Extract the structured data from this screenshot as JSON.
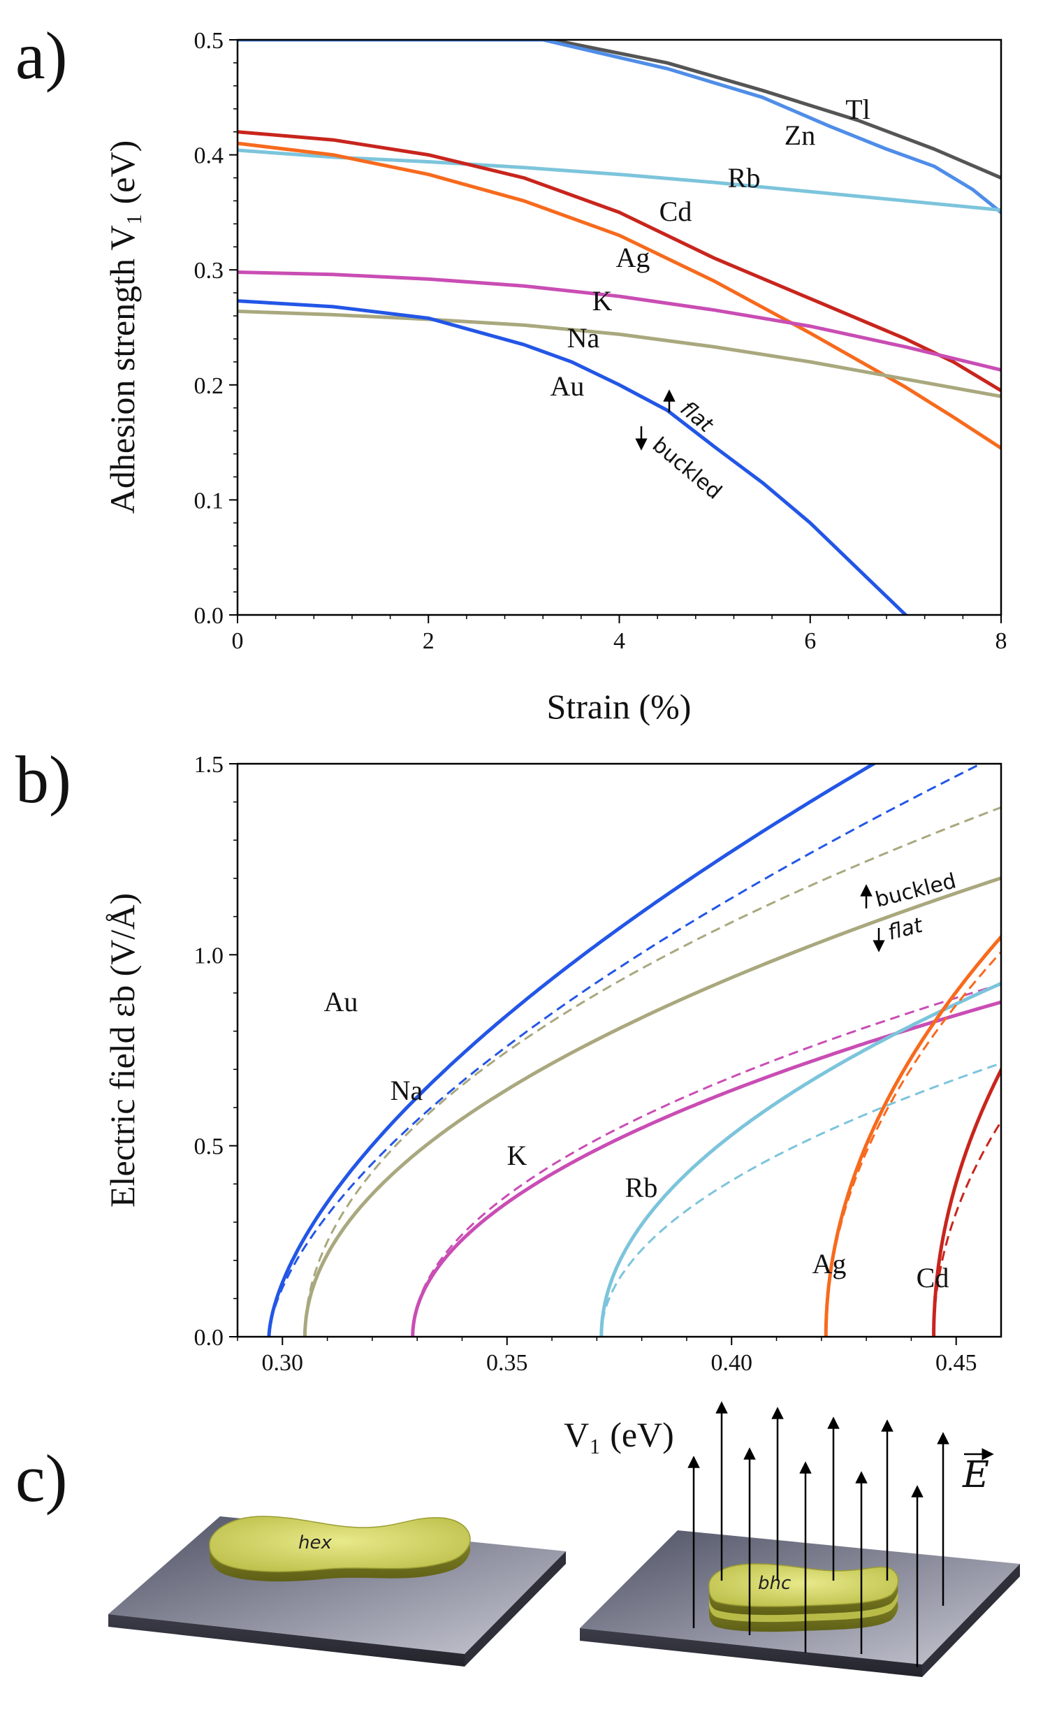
{
  "panels": {
    "a": "a)",
    "b": "b)",
    "c": "c)"
  },
  "chart_data": [
    {
      "type": "line",
      "panel": "a",
      "xlabel": "Strain (%)",
      "ylabel": "Adhesion strength V₁ (eV)",
      "xlim": [
        0,
        8
      ],
      "ylim": [
        0,
        0.5
      ],
      "xticks": [
        "0",
        "2",
        "4",
        "6",
        "8"
      ],
      "yticks": [
        "0.0",
        "0.1",
        "0.2",
        "0.3",
        "0.4",
        "0.5"
      ],
      "annotations": {
        "up": "flat",
        "down": "buckled"
      },
      "series": [
        {
          "name": "Tl",
          "color": "#555555",
          "x": [
            0,
            3.3,
            4.5,
            5.5,
            6.5,
            7.3,
            8.0
          ],
          "y": [
            0.5,
            0.5,
            0.48,
            0.456,
            0.43,
            0.405,
            0.38
          ]
        },
        {
          "name": "Zn",
          "color": "#4f8de8",
          "x": [
            0,
            3.2,
            4.5,
            5.5,
            6.2,
            6.8,
            7.3,
            7.7,
            8.0
          ],
          "y": [
            0.5,
            0.5,
            0.475,
            0.45,
            0.425,
            0.405,
            0.39,
            0.37,
            0.35
          ]
        },
        {
          "name": "Rb",
          "color": "#7cc4dc",
          "x": [
            0,
            1,
            2,
            3,
            4,
            5,
            6,
            7,
            8
          ],
          "y": [
            0.404,
            0.398,
            0.394,
            0.389,
            0.383,
            0.376,
            0.368,
            0.36,
            0.352
          ]
        },
        {
          "name": "Cd",
          "color": "#c8251d",
          "x": [
            0,
            1,
            2,
            3,
            4,
            5,
            6,
            7,
            7.5,
            8
          ],
          "y": [
            0.42,
            0.413,
            0.4,
            0.38,
            0.35,
            0.31,
            0.275,
            0.24,
            0.22,
            0.195
          ]
        },
        {
          "name": "Ag",
          "color": "#f76a1d",
          "x": [
            0,
            1,
            2,
            3,
            4,
            5,
            6,
            7,
            7.5,
            8
          ],
          "y": [
            0.41,
            0.4,
            0.383,
            0.36,
            0.33,
            0.29,
            0.245,
            0.198,
            0.172,
            0.145
          ]
        },
        {
          "name": "K",
          "color": "#c94db4",
          "x": [
            0,
            1,
            2,
            3,
            4,
            5,
            6,
            7,
            8
          ],
          "y": [
            0.298,
            0.296,
            0.292,
            0.286,
            0.277,
            0.265,
            0.251,
            0.233,
            0.213
          ]
        },
        {
          "name": "Na",
          "color": "#a9a87e",
          "x": [
            0,
            1,
            2,
            3,
            4,
            5,
            6,
            7,
            8
          ],
          "y": [
            0.264,
            0.261,
            0.257,
            0.252,
            0.244,
            0.233,
            0.22,
            0.205,
            0.19
          ]
        },
        {
          "name": "Au",
          "color": "#2356e6",
          "x": [
            0,
            1,
            2,
            3,
            3.5,
            4,
            4.5,
            5,
            5.5,
            6,
            6.5,
            7.0
          ],
          "y": [
            0.273,
            0.268,
            0.258,
            0.235,
            0.22,
            0.2,
            0.178,
            0.146,
            0.115,
            0.08,
            0.04,
            0.0
          ]
        }
      ]
    },
    {
      "type": "line",
      "panel": "b",
      "xlabel": "V₁ (eV)",
      "ylabel": "Electric field εb (V/Å)",
      "xlim": [
        0.29,
        0.46
      ],
      "ylim": [
        0,
        1.5
      ],
      "xticks": [
        "0.30",
        "0.35",
        "0.40",
        "0.45"
      ],
      "yticks": [
        "0.0",
        "0.5",
        "1.0",
        "1.5"
      ],
      "annotations": {
        "up": "buckled",
        "down": "flat"
      },
      "series": [
        {
          "name": "Au",
          "color": "#2356e6",
          "style": "solid",
          "x0": 0.297,
          "k": 5.2,
          "p": 0.62
        },
        {
          "name": "Au",
          "color": "#2356e6",
          "style": "dashed",
          "x0": 0.297,
          "k": 4.7,
          "p": 0.62
        },
        {
          "name": "Na",
          "color": "#a9a87e",
          "style": "solid",
          "x0": 0.305,
          "k": 3.05,
          "p": 0.5
        },
        {
          "name": "Na",
          "color": "#a9a87e",
          "style": "dashed",
          "x0": 0.305,
          "k": 3.52,
          "p": 0.5
        },
        {
          "name": "K",
          "color": "#c94db4",
          "style": "solid",
          "x0": 0.329,
          "k": 2.42,
          "p": 0.5
        },
        {
          "name": "K",
          "color": "#c94db4",
          "style": "dashed",
          "x0": 0.329,
          "k": 2.55,
          "p": 0.5
        },
        {
          "name": "Rb",
          "color": "#7cc4dc",
          "style": "solid",
          "x0": 0.371,
          "k": 3.1,
          "p": 0.5
        },
        {
          "name": "Rb",
          "color": "#7cc4dc",
          "style": "dashed",
          "x0": 0.371,
          "k": 2.4,
          "p": 0.5
        },
        {
          "name": "Ag",
          "color": "#f76a1d",
          "style": "solid",
          "x0": 0.421,
          "k": 5.3,
          "p": 0.5
        },
        {
          "name": "Ag",
          "color": "#f76a1d",
          "style": "dashed",
          "x0": 0.421,
          "k": 5.1,
          "p": 0.5
        },
        {
          "name": "Cd",
          "color": "#c8251d",
          "style": "solid",
          "x0": 0.445,
          "k": 5.7,
          "p": 0.5
        },
        {
          "name": "Cd",
          "color": "#c8251d",
          "style": "dashed",
          "x0": 0.445,
          "k": 4.6,
          "p": 0.5
        }
      ]
    }
  ],
  "illustration": {
    "left_label": "hex",
    "right_label": "bhc",
    "field_label": "E"
  }
}
